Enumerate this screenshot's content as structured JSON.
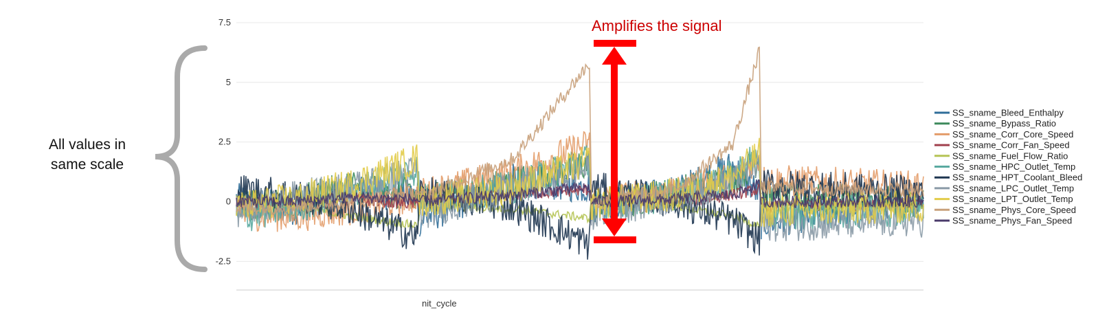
{
  "annotations": {
    "left_label_line1": "All values in",
    "left_label_line2": "same scale",
    "top_label": "Amplifies the signal",
    "top_label_color": "#cc0000",
    "arrow_color": "#ff0000",
    "brace_color": "#aaaaaa"
  },
  "chart_data": {
    "type": "line",
    "title": "",
    "xlabel": "nit_cycle",
    "ylabel": "",
    "ylim": [
      -3.7,
      7.5
    ],
    "yticks": [
      7.5,
      5,
      2.5,
      0,
      -2.5
    ],
    "ytick_labels": [
      "7.5",
      "5",
      "2.5",
      "0",
      "-2.5"
    ],
    "xlim": [
      0,
      720
    ],
    "grid": true,
    "legend_position": "right",
    "segments": [
      [
        0,
        192
      ],
      [
        192,
        372
      ],
      [
        372,
        550
      ],
      [
        550,
        720
      ]
    ],
    "series": [
      {
        "name": "SS_sname_Bleed_Enthalpy",
        "color": "#2f6e99",
        "values": [
          0.1,
          -0.3,
          0.5,
          0.2,
          -0.8,
          0.9,
          0.6,
          -0.2,
          0.4,
          1.5,
          0.3,
          -0.9,
          0.2
        ]
      },
      {
        "name": "SS_sname_Bypass_Ratio",
        "color": "#3d8a5c",
        "values": [
          -0.2,
          0.1,
          0.6,
          0.3,
          0.0,
          0.8,
          1.6,
          -0.3,
          0.4,
          0.9,
          1.8,
          0.2,
          -0.1
        ]
      },
      {
        "name": "SS_sname_Corr_Core_Speed",
        "color": "#e39c69",
        "values": [
          -0.5,
          -0.6,
          -0.3,
          0.2,
          0.3,
          1.2,
          2.4,
          0.1,
          0.3,
          1.0,
          1.9,
          0.9,
          0.6
        ]
      },
      {
        "name": "SS_sname_Corr_Fan_Speed",
        "color": "#a0404d",
        "values": [
          0.0,
          -0.2,
          0.1,
          -0.1,
          0.0,
          0.3,
          0.5,
          0.0,
          -0.1,
          0.3,
          0.5,
          -0.2,
          -0.1
        ]
      },
      {
        "name": "SS_sname_Fuel_Flow_Ratio",
        "color": "#b5c454",
        "values": [
          0.1,
          -0.2,
          -0.6,
          -1.0,
          -0.2,
          -0.3,
          -0.7,
          0.1,
          -0.2,
          -0.6,
          -1.0,
          -0.3,
          -0.2
        ]
      },
      {
        "name": "SS_sname_HPC_Outlet_Temp",
        "color": "#5aaaa0",
        "values": [
          -0.7,
          -0.2,
          0.4,
          1.4,
          0.1,
          0.6,
          1.8,
          -0.2,
          0.3,
          1.1,
          2.0,
          -0.6,
          -0.3
        ]
      },
      {
        "name": "SS_sname_HPT_Coolant_Bleed",
        "color": "#1e3550",
        "values": [
          0.5,
          0.3,
          -0.3,
          -1.5,
          0.4,
          -0.2,
          -1.8,
          0.6,
          0.0,
          -0.8,
          -1.6,
          0.7,
          0.4
        ]
      },
      {
        "name": "SS_sname_LPC_Outlet_Temp",
        "color": "#8a9aa6",
        "values": [
          -0.4,
          0.2,
          0.6,
          1.3,
          -0.5,
          0.5,
          1.4,
          -0.5,
          0.2,
          0.8,
          1.6,
          -1.0,
          -0.8
        ]
      },
      {
        "name": "SS_sname_LPT_Outlet_Temp",
        "color": "#e2cc4a",
        "values": [
          -0.2,
          0.1,
          0.7,
          1.8,
          0.0,
          0.6,
          1.7,
          -0.1,
          0.3,
          1.0,
          2.0,
          -0.4,
          -0.2
        ]
      },
      {
        "name": "SS_sname_Phys_Core_Speed",
        "color": "#c8a07a",
        "values": [
          -0.3,
          -0.2,
          0.0,
          0.4,
          0.2,
          1.8,
          5.8,
          0.0,
          0.5,
          2.4,
          6.3,
          0.6,
          0.5
        ]
      },
      {
        "name": "SS_sname_Phys_Fan_Speed",
        "color": "#4a3a6a",
        "values": [
          0.0,
          0.0,
          0.2,
          0.1,
          0.0,
          0.3,
          0.6,
          0.0,
          0.1,
          0.3,
          0.7,
          0.0,
          0.0
        ]
      }
    ],
    "x": [
      0,
      60,
      120,
      190,
      192,
      290,
      370,
      372,
      460,
      520,
      548,
      550,
      720
    ]
  }
}
